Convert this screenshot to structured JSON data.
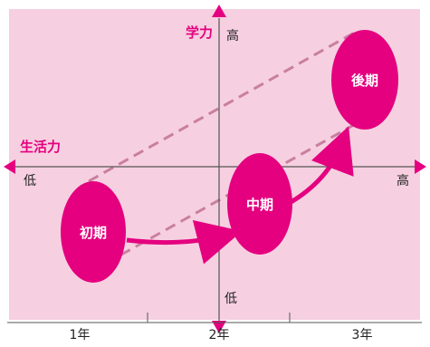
{
  "colors": {
    "background": "#f6d0e0",
    "magenta": "#e4007f",
    "dashed": "#c97fa0",
    "axis_line": "#555555",
    "text": "#222222",
    "ellipse_text": "#ffffff"
  },
  "axes": {
    "vertical_title": "学力",
    "horizontal_title": "生活力",
    "top_label": "高",
    "bottom_label": "低",
    "left_label": "低",
    "right_label": "高"
  },
  "stages": {
    "early": "初期",
    "middle": "中期",
    "late": "後期"
  },
  "timeline": {
    "labels": [
      "1年",
      "2年",
      "3年"
    ]
  }
}
